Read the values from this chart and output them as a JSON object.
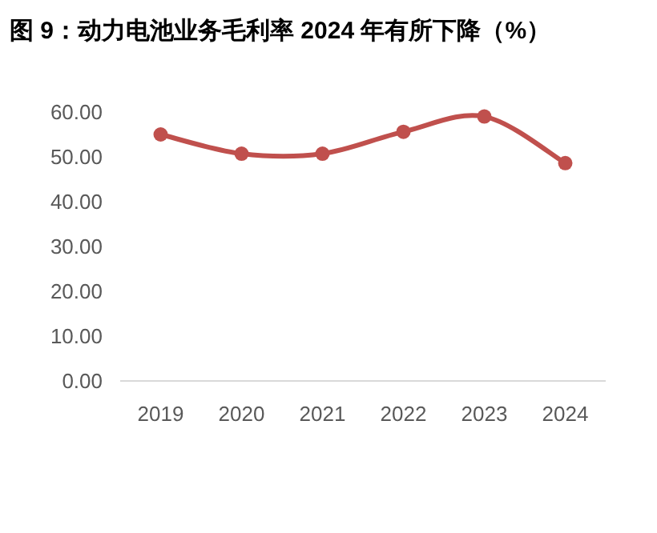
{
  "chart_data": {
    "type": "line",
    "title": "图 9：动力电池业务毛利率 2024 年有所下降（%）",
    "categories": [
      "2019",
      "2020",
      "2021",
      "2022",
      "2023",
      "2024"
    ],
    "series": [
      {
        "color": "#c0504d",
        "values": [
          55.0,
          50.7,
          50.7,
          55.6,
          59.0,
          48.6
        ]
      }
    ],
    "ylim": [
      0,
      60
    ],
    "yticks": [
      {
        "value": 0,
        "label": "0.00"
      },
      {
        "value": 10,
        "label": "10.00"
      },
      {
        "value": 20,
        "label": "20.00"
      },
      {
        "value": 30,
        "label": "30.00"
      },
      {
        "value": 40,
        "label": "40.00"
      },
      {
        "value": 50,
        "label": "50.00"
      },
      {
        "value": 60,
        "label": "60.00"
      }
    ],
    "grid": false,
    "marker": "circle",
    "line_style": "solid"
  }
}
